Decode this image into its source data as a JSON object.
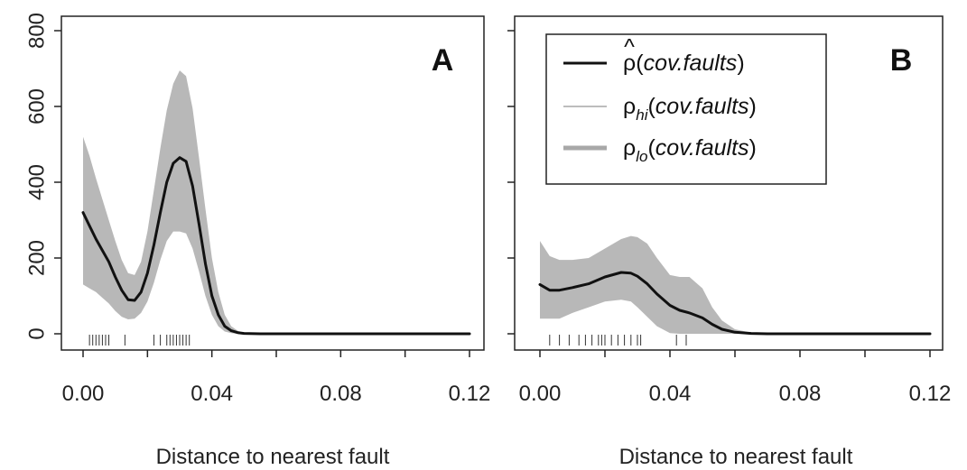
{
  "chart_data": [
    {
      "type": "line",
      "panel_label": "A",
      "xlabel": "Distance to nearest fault",
      "ylabel": "",
      "xlim": [
        0,
        0.12
      ],
      "ylim": [
        0,
        800
      ],
      "x_ticks": [
        0.0,
        0.04,
        0.08,
        0.12
      ],
      "x_tick_labels": [
        "0.00",
        "0.04",
        "0.08",
        "0.12"
      ],
      "y_ticks": [
        0,
        200,
        400,
        600,
        800
      ],
      "y_tick_labels": [
        "0",
        "200",
        "400",
        "600",
        "800"
      ],
      "grid": false,
      "series": [
        {
          "style": "line",
          "x": [
            0.0,
            0.002,
            0.004,
            0.006,
            0.008,
            0.01,
            0.012,
            0.014,
            0.016,
            0.018,
            0.02,
            0.022,
            0.024,
            0.026,
            0.028,
            0.03,
            0.032,
            0.034,
            0.036,
            0.038,
            0.04,
            0.042,
            0.044,
            0.046,
            0.048,
            0.05,
            0.055,
            0.06,
            0.07,
            0.08,
            0.09,
            0.1,
            0.11,
            0.12
          ],
          "y": [
            320,
            285,
            250,
            220,
            190,
            150,
            115,
            90,
            88,
            110,
            160,
            235,
            320,
            400,
            450,
            465,
            455,
            390,
            290,
            185,
            100,
            50,
            20,
            8,
            3,
            1,
            0,
            0,
            0,
            0,
            0,
            0,
            0,
            0
          ]
        },
        {
          "style": "band",
          "x": [
            0.0,
            0.002,
            0.004,
            0.006,
            0.008,
            0.01,
            0.012,
            0.014,
            0.016,
            0.018,
            0.02,
            0.022,
            0.024,
            0.026,
            0.028,
            0.03,
            0.032,
            0.034,
            0.036,
            0.038,
            0.04,
            0.042,
            0.044,
            0.046,
            0.048,
            0.05,
            0.055,
            0.06
          ],
          "upper": [
            520,
            470,
            410,
            355,
            300,
            245,
            195,
            160,
            155,
            190,
            270,
            380,
            490,
            590,
            660,
            695,
            680,
            595,
            465,
            330,
            200,
            110,
            50,
            20,
            8,
            3,
            0,
            0
          ],
          "lower": [
            130,
            120,
            110,
            95,
            80,
            60,
            45,
            38,
            40,
            55,
            85,
            135,
            195,
            245,
            270,
            270,
            265,
            225,
            165,
            100,
            50,
            20,
            6,
            2,
            0,
            0,
            0,
            0
          ]
        }
      ],
      "rug": [
        0.002,
        0.003,
        0.004,
        0.005,
        0.006,
        0.007,
        0.008,
        0.013,
        0.022,
        0.024,
        0.026,
        0.027,
        0.028,
        0.029,
        0.03,
        0.031,
        0.032,
        0.033
      ]
    },
    {
      "type": "line",
      "panel_label": "B",
      "xlabel": "Distance to nearest fault",
      "ylabel": "",
      "xlim": [
        0,
        0.12
      ],
      "ylim": [
        0,
        800
      ],
      "x_ticks": [
        0.0,
        0.04,
        0.08,
        0.12
      ],
      "x_tick_labels": [
        "0.00",
        "0.04",
        "0.08",
        "0.12"
      ],
      "y_ticks": [
        0,
        200,
        400,
        600,
        800
      ],
      "grid": false,
      "legend_position": "top-right",
      "legend": [
        {
          "symbol": "ρ",
          "hat": "^",
          "sub": "",
          "text": "(cov.faults)",
          "style": "thick-black"
        },
        {
          "symbol": "ρ",
          "hat": "",
          "sub": "hi",
          "text": "(cov.faults)",
          "style": "thin-gray"
        },
        {
          "symbol": "ρ",
          "hat": "",
          "sub": "lo",
          "text": "(cov.faults)",
          "style": "thick-gray"
        }
      ],
      "series": [
        {
          "style": "line",
          "x": [
            0.0,
            0.003,
            0.006,
            0.01,
            0.015,
            0.02,
            0.025,
            0.028,
            0.03,
            0.033,
            0.036,
            0.04,
            0.043,
            0.046,
            0.05,
            0.053,
            0.056,
            0.06,
            0.065,
            0.07,
            0.08,
            0.09,
            0.1,
            0.11,
            0.12
          ],
          "y": [
            130,
            115,
            115,
            122,
            132,
            150,
            162,
            160,
            152,
            132,
            105,
            75,
            62,
            55,
            42,
            25,
            12,
            4,
            1,
            0,
            0,
            0,
            0,
            0,
            0
          ]
        },
        {
          "style": "band",
          "x": [
            0.0,
            0.003,
            0.006,
            0.01,
            0.015,
            0.02,
            0.025,
            0.028,
            0.03,
            0.033,
            0.036,
            0.04,
            0.043,
            0.046,
            0.05,
            0.053,
            0.056,
            0.06,
            0.065
          ],
          "upper": [
            245,
            205,
            195,
            195,
            200,
            225,
            250,
            258,
            255,
            238,
            200,
            155,
            150,
            150,
            120,
            70,
            35,
            12,
            3
          ],
          "lower": [
            40,
            40,
            40,
            55,
            70,
            85,
            90,
            85,
            70,
            45,
            20,
            2,
            0,
            0,
            0,
            0,
            0,
            0,
            0
          ]
        }
      ],
      "rug": [
        0.003,
        0.006,
        0.009,
        0.012,
        0.014,
        0.016,
        0.018,
        0.019,
        0.02,
        0.022,
        0.024,
        0.026,
        0.028,
        0.03,
        0.031,
        0.042,
        0.045
      ]
    }
  ]
}
